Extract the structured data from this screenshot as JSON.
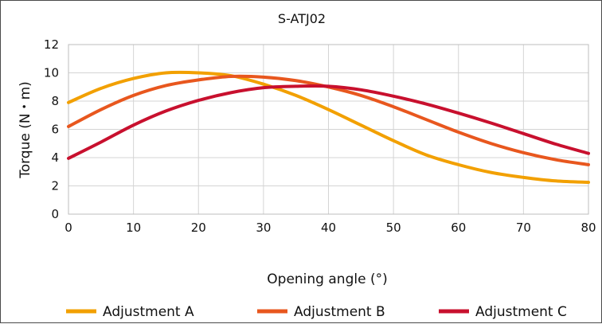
{
  "chart_data": {
    "type": "line",
    "title": "S-ATJ02",
    "xlabel": "Opening angle (°)",
    "ylabel": "Torque (N・m)",
    "xlim": [
      0,
      80
    ],
    "ylim": [
      0,
      12
    ],
    "xticks": [
      0,
      10,
      20,
      30,
      40,
      50,
      60,
      70,
      80
    ],
    "yticks": [
      0,
      2,
      4,
      6,
      8,
      10,
      12
    ],
    "grid": true,
    "legend_position": "bottom",
    "x": [
      0,
      5,
      10,
      15,
      20,
      25,
      30,
      35,
      40,
      45,
      50,
      55,
      60,
      65,
      70,
      75,
      80
    ],
    "series": [
      {
        "name": "Adjustment A",
        "color": "#f2a000",
        "values": [
          7.9,
          8.9,
          9.6,
          10.0,
          10.0,
          9.8,
          9.2,
          8.4,
          7.4,
          6.3,
          5.2,
          4.2,
          3.5,
          2.95,
          2.6,
          2.35,
          2.25
        ]
      },
      {
        "name": "Adjustment B",
        "color": "#e8571e",
        "values": [
          6.2,
          7.4,
          8.4,
          9.1,
          9.5,
          9.75,
          9.7,
          9.45,
          9.0,
          8.4,
          7.6,
          6.7,
          5.8,
          5.0,
          4.35,
          3.85,
          3.5
        ]
      },
      {
        "name": "Adjustment C",
        "color": "#c8102e",
        "values": [
          3.95,
          5.1,
          6.3,
          7.3,
          8.05,
          8.6,
          8.95,
          9.05,
          9.05,
          8.8,
          8.35,
          7.8,
          7.15,
          6.45,
          5.7,
          4.95,
          4.3
        ]
      }
    ]
  }
}
